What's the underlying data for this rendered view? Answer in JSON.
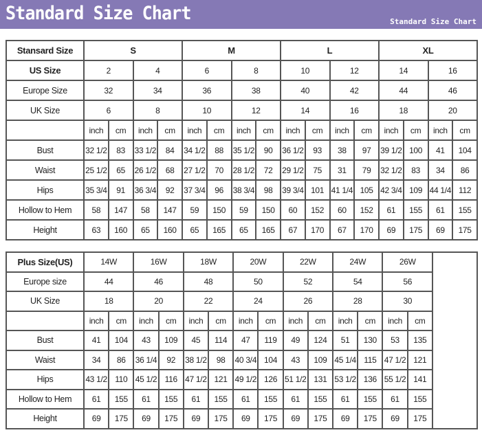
{
  "header": {
    "title": "Standard Size Chart",
    "subtitle": "Standard Size Chart",
    "background": "#8579b5"
  },
  "standard": {
    "corner": "Stansard Size",
    "groups": [
      "S",
      "M",
      "L",
      "XL"
    ],
    "us_label": "US Size",
    "us": [
      "2",
      "4",
      "6",
      "8",
      "10",
      "12",
      "14",
      "16"
    ],
    "europe_label": "Europe Size",
    "europe": [
      "32",
      "34",
      "36",
      "38",
      "40",
      "42",
      "44",
      "46"
    ],
    "uk_label": "UK Size",
    "uk": [
      "6",
      "8",
      "10",
      "12",
      "14",
      "16",
      "18",
      "20"
    ],
    "units": [
      "inch",
      "cm"
    ],
    "measurements": [
      {
        "label": "Bust",
        "values": [
          "32 1/2",
          "83",
          "33 1/2",
          "84",
          "34 1/2",
          "88",
          "35 1/2",
          "90",
          "36 1/2",
          "93",
          "38",
          "97",
          "39 1/2",
          "100",
          "41",
          "104"
        ]
      },
      {
        "label": "Waist",
        "values": [
          "25 1/2",
          "65",
          "26 1/2",
          "68",
          "27 1/2",
          "70",
          "28 1/2",
          "72",
          "29 1/2",
          "75",
          "31",
          "79",
          "32 1/2",
          "83",
          "34",
          "86"
        ]
      },
      {
        "label": "Hips",
        "values": [
          "35 3/4",
          "91",
          "36 3/4",
          "92",
          "37 3/4",
          "96",
          "38 3/4",
          "98",
          "39 3/4",
          "101",
          "41 1/4",
          "105",
          "42 3/4",
          "109",
          "44 1/4",
          "112"
        ]
      },
      {
        "label": "Hollow to Hem",
        "values": [
          "58",
          "147",
          "58",
          "147",
          "59",
          "150",
          "59",
          "150",
          "60",
          "152",
          "60",
          "152",
          "61",
          "155",
          "61",
          "155"
        ]
      },
      {
        "label": "Height",
        "values": [
          "63",
          "160",
          "65",
          "160",
          "65",
          "165",
          "65",
          "165",
          "67",
          "170",
          "67",
          "170",
          "69",
          "175",
          "69",
          "175"
        ]
      }
    ]
  },
  "plus": {
    "corner": "Plus Size(US)",
    "us": [
      "14W",
      "16W",
      "18W",
      "20W",
      "22W",
      "24W",
      "26W"
    ],
    "europe_label": "Europe size",
    "europe": [
      "44",
      "46",
      "48",
      "50",
      "52",
      "54",
      "56"
    ],
    "uk_label": "UK Size",
    "uk": [
      "18",
      "20",
      "22",
      "24",
      "26",
      "28",
      "30"
    ],
    "units": [
      "inch",
      "cm"
    ],
    "measurements": [
      {
        "label": "Bust",
        "values": [
          "41",
          "104",
          "43",
          "109",
          "45",
          "114",
          "47",
          "119",
          "49",
          "124",
          "51",
          "130",
          "53",
          "135"
        ]
      },
      {
        "label": "Waist",
        "values": [
          "34",
          "86",
          "36 1/4",
          "92",
          "38 1/2",
          "98",
          "40 3/4",
          "104",
          "43",
          "109",
          "45 1/4",
          "115",
          "47 1/2",
          "121"
        ]
      },
      {
        "label": "Hips",
        "values": [
          "43 1/2",
          "110",
          "45 1/2",
          "116",
          "47 1/2",
          "121",
          "49 1/2",
          "126",
          "51 1/2",
          "131",
          "53 1/2",
          "136",
          "55 1/2",
          "141"
        ]
      },
      {
        "label": "Hollow to Hem",
        "values": [
          "61",
          "155",
          "61",
          "155",
          "61",
          "155",
          "61",
          "155",
          "61",
          "155",
          "61",
          "155",
          "61",
          "155"
        ]
      },
      {
        "label": "Height",
        "values": [
          "69",
          "175",
          "69",
          "175",
          "69",
          "175",
          "69",
          "175",
          "69",
          "175",
          "69",
          "175",
          "69",
          "175"
        ]
      }
    ]
  }
}
